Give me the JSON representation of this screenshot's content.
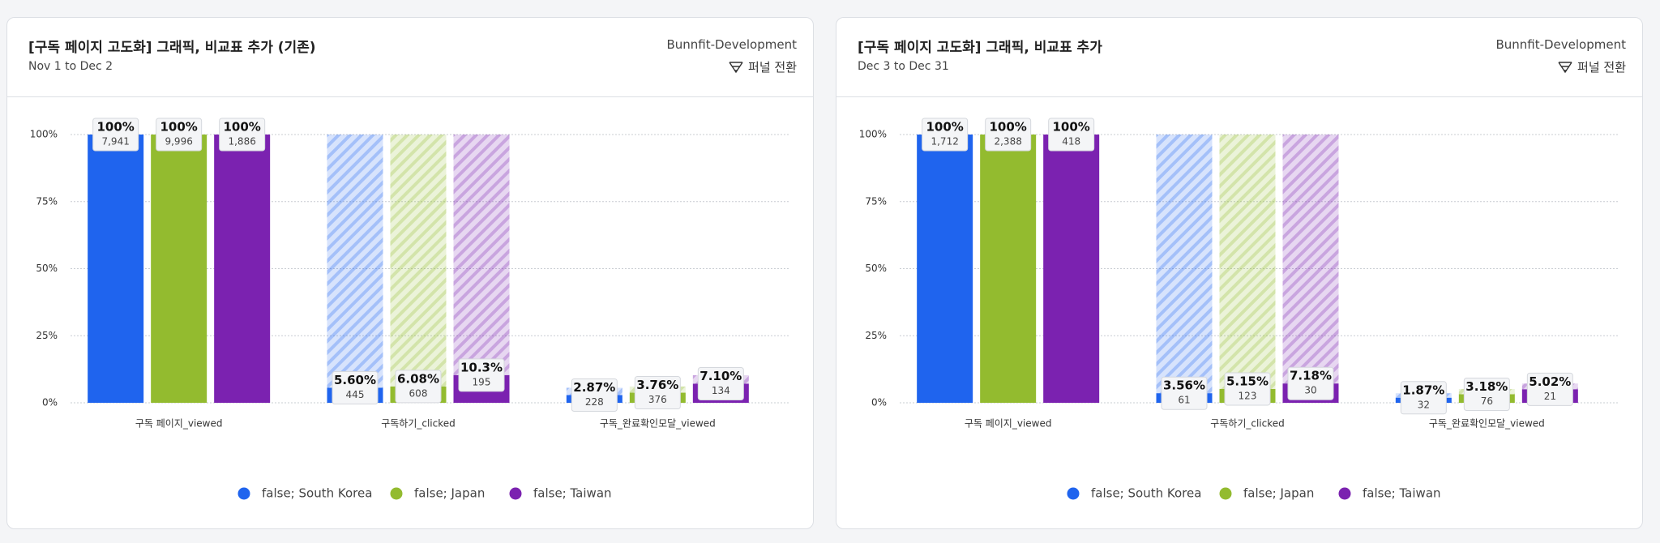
{
  "chart_data": [
    {
      "type": "funnel_bar",
      "title": "[구독 페이지 고도화] 그래픽, 비교표 추가 (기존)",
      "subtitle": "Nov 1 to Dec 2",
      "project": "Bunnfit-Development",
      "button": "퍼널 전환",
      "categories": [
        "구독 페이지_viewed",
        "구독하기_clicked",
        "구독_완료확인모달_viewed"
      ],
      "ylim": [
        0,
        100
      ],
      "yticks": [
        {
          "value": 0,
          "label": "0%"
        },
        {
          "value": 25,
          "label": "25%"
        },
        {
          "value": 50,
          "label": "50%"
        },
        {
          "value": 75,
          "label": "75%"
        },
        {
          "value": 100,
          "label": "100%"
        }
      ],
      "grid": true,
      "series": [
        {
          "name": "false; South Korea",
          "color": "#1f64ee",
          "values": [
            100,
            5.6,
            2.87
          ],
          "value_labels": [
            "100%",
            "5.60%",
            "2.87%"
          ],
          "count_labels": [
            "7,941",
            "445",
            "228"
          ]
        },
        {
          "name": "false; Japan",
          "color": "#93bb2f",
          "values": [
            100,
            6.08,
            3.76
          ],
          "value_labels": [
            "100%",
            "6.08%",
            "3.76%"
          ],
          "count_labels": [
            "9,996",
            "608",
            "376"
          ]
        },
        {
          "name": "false; Taiwan",
          "color": "#7b22b0",
          "values": [
            100,
            10.3,
            7.1
          ],
          "value_labels": [
            "100%",
            "10.3%",
            "7.10%"
          ],
          "count_labels": [
            "1,886",
            "195",
            "134"
          ]
        }
      ]
    },
    {
      "type": "funnel_bar",
      "title": "[구독 페이지 고도화] 그래픽, 비교표 추가",
      "subtitle": "Dec 3 to Dec 31",
      "project": "Bunnfit-Development",
      "button": "퍼널 전환",
      "categories": [
        "구독 페이지_viewed",
        "구독하기_clicked",
        "구독_완료확인모달_viewed"
      ],
      "ylim": [
        0,
        100
      ],
      "yticks": [
        {
          "value": 0,
          "label": "0%"
        },
        {
          "value": 25,
          "label": "25%"
        },
        {
          "value": 50,
          "label": "50%"
        },
        {
          "value": 75,
          "label": "75%"
        },
        {
          "value": 100,
          "label": "100%"
        }
      ],
      "grid": true,
      "series": [
        {
          "name": "false; South Korea",
          "color": "#1f64ee",
          "values": [
            100,
            3.56,
            1.87
          ],
          "value_labels": [
            "100%",
            "3.56%",
            "1.87%"
          ],
          "count_labels": [
            "1,712",
            "61",
            "32"
          ]
        },
        {
          "name": "false; Japan",
          "color": "#93bb2f",
          "values": [
            100,
            5.15,
            3.18
          ],
          "value_labels": [
            "100%",
            "5.15%",
            "3.18%"
          ],
          "count_labels": [
            "2,388",
            "123",
            "76"
          ]
        },
        {
          "name": "false; Taiwan",
          "color": "#7b22b0",
          "values": [
            100,
            7.18,
            5.02
          ],
          "value_labels": [
            "100%",
            "7.18%",
            "5.02%"
          ],
          "count_labels": [
            "418",
            "30",
            "21"
          ]
        }
      ]
    }
  ]
}
